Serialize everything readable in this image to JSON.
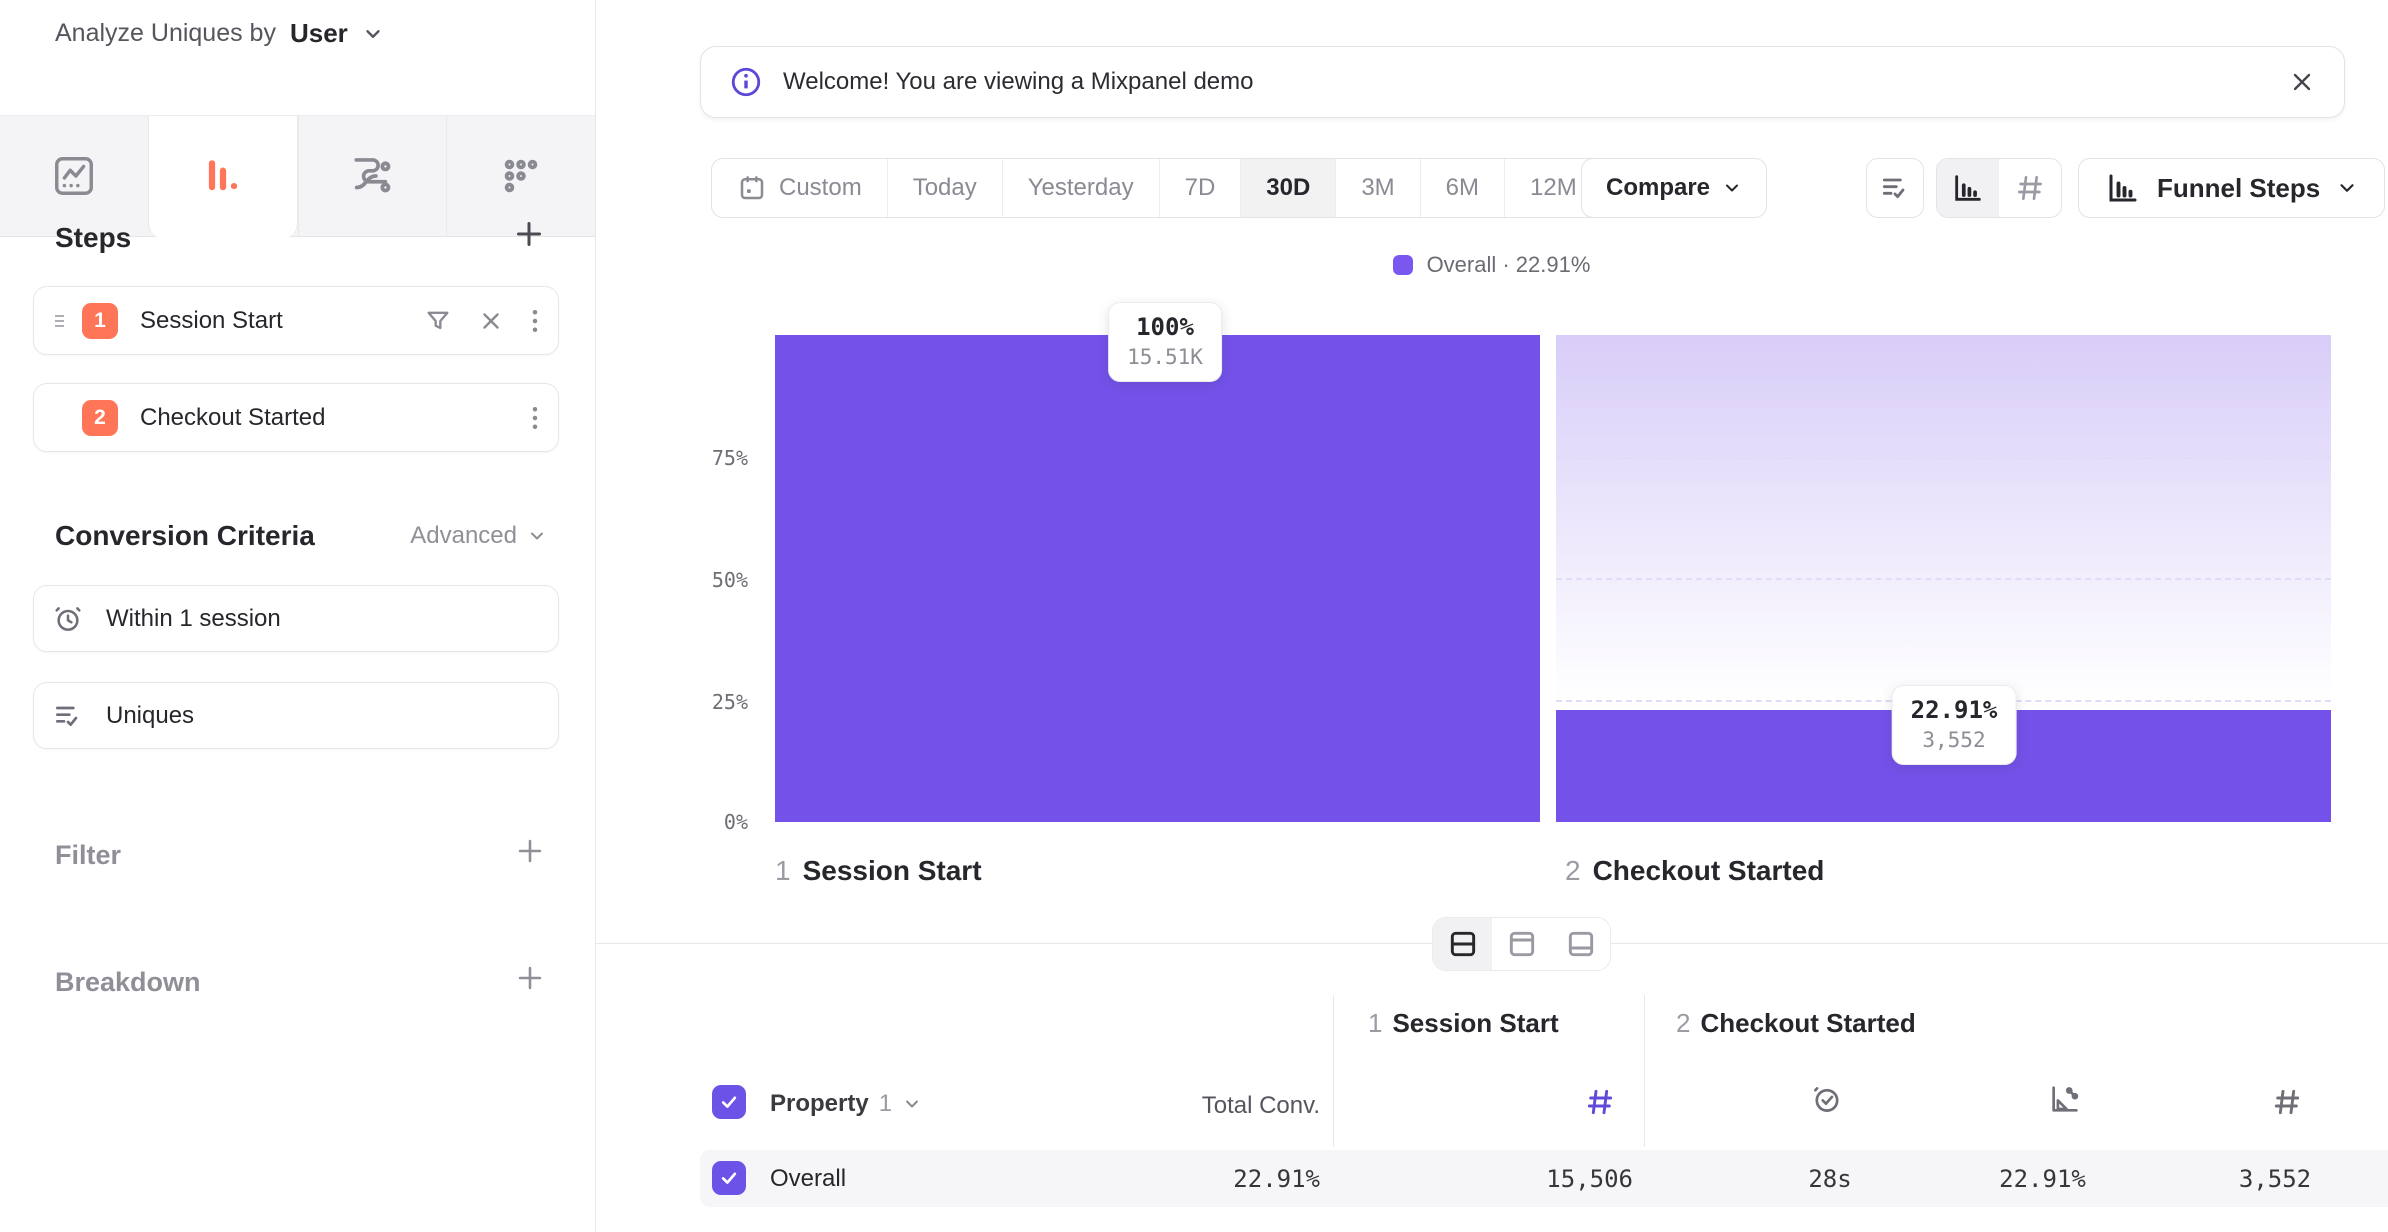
{
  "colors": {
    "purple": "#7452E9",
    "purple_bright": "#7A58F0",
    "purple_light": "#D8CDF8",
    "checkbox_purple": "#6D52E8",
    "info_purple": "#5B48D9",
    "orange": "#FF7557"
  },
  "sidebar": {
    "analyze_label": "Analyze Uniques by",
    "analyze_value": "User",
    "steps_title": "Steps",
    "steps": [
      {
        "num": "1",
        "label": "Session Start"
      },
      {
        "num": "2",
        "label": "Checkout Started"
      }
    ],
    "conversion_title": "Conversion Criteria",
    "advanced_label": "Advanced",
    "criteria": [
      {
        "label": "Within 1 session"
      },
      {
        "label": "Uniques"
      }
    ],
    "filter_label": "Filter",
    "breakdown_label": "Breakdown"
  },
  "banner": {
    "message": "Welcome! You are viewing a Mixpanel demo"
  },
  "toolbar": {
    "ranges": [
      "Custom",
      "Today",
      "Yesterday",
      "7D",
      "30D",
      "3M",
      "6M",
      "12M"
    ],
    "active_range": "30D",
    "compare_label": "Compare",
    "funnel_steps_label": "Funnel Steps"
  },
  "chart_data": {
    "type": "bar",
    "subtype": "funnel-steps",
    "title": "Funnel Steps",
    "legend": {
      "label": "Overall · 22.91%",
      "position": "top-center",
      "color": "#7A58F0"
    },
    "categories": [
      {
        "num": "1",
        "label": "Session Start"
      },
      {
        "num": "2",
        "label": "Checkout Started"
      }
    ],
    "series": [
      {
        "name": "Overall",
        "values_pct": [
          100,
          22.91
        ],
        "counts": [
          15506,
          3552
        ],
        "pct_labels": [
          "100%",
          "22.91%"
        ],
        "count_labels": [
          "15.51K",
          "3,552"
        ]
      }
    ],
    "ylim": [
      0,
      100
    ],
    "yticks": [
      "75%",
      "50%",
      "25%",
      "0%"
    ],
    "grid": "dashed horizontal lines at 25/50/75 over drop-off area"
  },
  "table": {
    "group_headers": [
      {
        "num": "1",
        "label": "Session Start"
      },
      {
        "num": "2",
        "label": "Checkout Started"
      }
    ],
    "property_label": "Property",
    "property_num": "1",
    "total_conv_label": "Total Conv.",
    "rows": [
      {
        "name": "Overall",
        "total_conv": "22.91%",
        "session_start_count": "15,506",
        "avg_time": "28s",
        "conv_rate": "22.91%",
        "checkout_count": "3,552"
      }
    ]
  }
}
